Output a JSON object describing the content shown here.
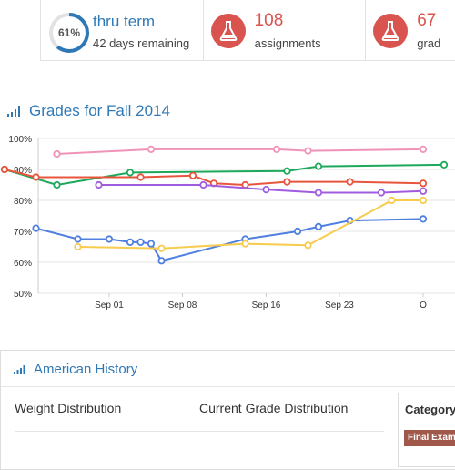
{
  "stats": {
    "term_progress": 0.61,
    "term_percent_label": "61%",
    "term_title": "thru term",
    "term_remaining": "42 days remaining",
    "assignments_count": "108",
    "assignments_label": "assignments",
    "third_count": "67",
    "third_label": "grad"
  },
  "grades_title": "Grades for Fall 2014",
  "chart_data": {
    "type": "line",
    "title": "",
    "xlabel": "",
    "ylabel": "",
    "x_ticks": [
      "Sep 01",
      "Sep 08",
      "Sep 16",
      "Sep 23",
      "O"
    ],
    "y_ticks": [
      "100%",
      "90%",
      "80%",
      "70%",
      "60%",
      "50%"
    ],
    "ylim": [
      50,
      100
    ],
    "grid": true,
    "series": [
      {
        "color": "#f093b8",
        "points": [
          [
            "Aug 27",
            95
          ],
          [
            "Sep 05",
            96.5
          ],
          [
            "Sep 17",
            96.5
          ],
          [
            "Sep 20",
            96
          ],
          [
            "Oct 01",
            96.5
          ]
        ]
      },
      {
        "color": "#1ea85c",
        "points": [
          [
            "Aug 22",
            90
          ],
          [
            "Aug 27",
            85
          ],
          [
            "Sep 03",
            89
          ],
          [
            "Sep 18",
            89.5
          ],
          [
            "Sep 21",
            91
          ],
          [
            "Oct 03",
            91.5
          ]
        ]
      },
      {
        "color": "#e8553d",
        "points": [
          [
            "Aug 22",
            90
          ],
          [
            "Aug 25",
            87.5
          ],
          [
            "Sep 04",
            87.5
          ],
          [
            "Sep 09",
            88
          ],
          [
            "Sep 11",
            85.5
          ],
          [
            "Sep 14",
            85
          ],
          [
            "Sep 18",
            86
          ],
          [
            "Sep 24",
            86
          ],
          [
            "Oct 01",
            85.5
          ]
        ]
      },
      {
        "color": "#a05cdf",
        "points": [
          [
            "Aug 31",
            85
          ],
          [
            "Sep 10",
            85
          ],
          [
            "Sep 16",
            83.5
          ],
          [
            "Sep 21",
            82.5
          ],
          [
            "Sep 27",
            82.5
          ],
          [
            "Oct 01",
            83
          ]
        ]
      },
      {
        "color": "#4f7fe0",
        "points": [
          [
            "Aug 25",
            71
          ],
          [
            "Aug 29",
            67.5
          ],
          [
            "Sep 01",
            67.5
          ],
          [
            "Sep 03",
            66.5
          ],
          [
            "Sep 04",
            66.5
          ],
          [
            "Sep 05",
            66
          ],
          [
            "Sep 06",
            60.5
          ],
          [
            "Sep 14",
            67.5
          ],
          [
            "Sep 19",
            70
          ],
          [
            "Sep 21",
            71.5
          ],
          [
            "Sep 24",
            73.5
          ],
          [
            "Oct 01",
            74
          ]
        ]
      },
      {
        "color": "#f7cb4d",
        "points": [
          [
            "Aug 29",
            65
          ],
          [
            "Sep 06",
            64.5
          ],
          [
            "Sep 14",
            66
          ],
          [
            "Sep 20",
            65.5
          ],
          [
            "Sep 28",
            80
          ],
          [
            "Oct 01",
            80
          ]
        ]
      }
    ]
  },
  "course": {
    "title": "American History",
    "weight_heading": "Weight Distribution",
    "current_heading": "Current Grade Distribution",
    "category_heading": "Category",
    "final_tag": "Final Exam"
  },
  "colors": {
    "accent": "#2f78b6",
    "alert": "#d9534f",
    "final_tag": "#a0584a"
  }
}
